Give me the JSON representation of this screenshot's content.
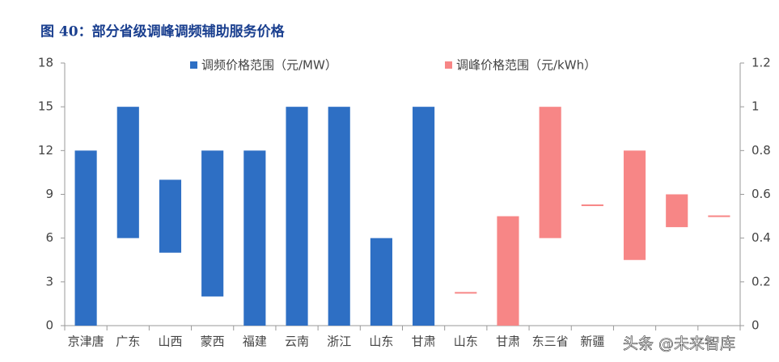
{
  "chart_data": {
    "type": "floating-bar",
    "title": "图 40：部分省级调峰调频辅助服务价格",
    "watermark": "头条 @未来智库",
    "categories": [
      "京津唐",
      "广东",
      "山西",
      "蒙西",
      "福建",
      "云南",
      "浙江",
      "山东",
      "甘肃",
      "山东",
      "甘肃",
      "东三省",
      "新疆",
      null,
      null,
      null
    ],
    "series": [
      {
        "name": "调频价格范围（元/MW）",
        "color": "#2e6fc4",
        "axis": "y",
        "low": [
          0,
          6,
          5,
          2,
          0,
          0,
          0,
          0,
          0,
          null,
          null,
          null,
          null,
          null,
          null,
          null
        ],
        "high": [
          12,
          15,
          10,
          12,
          12,
          15,
          15,
          6,
          15,
          null,
          null,
          null,
          null,
          null,
          null,
          null
        ]
      },
      {
        "name": "调峰价格范围（元/kWh）",
        "color": "#f78686",
        "axis": "y2",
        "low": [
          null,
          null,
          null,
          null,
          null,
          null,
          null,
          null,
          null,
          0.15,
          0,
          0.4,
          0.55,
          0.3,
          0.45,
          0.5
        ],
        "high": [
          null,
          null,
          null,
          null,
          null,
          null,
          null,
          null,
          null,
          0.15,
          0.5,
          1.0,
          0.55,
          0.8,
          0.6,
          0.5
        ]
      }
    ],
    "ylim": [
      0,
      18
    ],
    "yticks": [
      0,
      3,
      6,
      9,
      12,
      15,
      18
    ],
    "y2lim": [
      0,
      1.2
    ],
    "y2ticks": [
      0,
      0.2,
      0.4,
      0.6,
      0.8,
      1,
      1.2
    ]
  }
}
